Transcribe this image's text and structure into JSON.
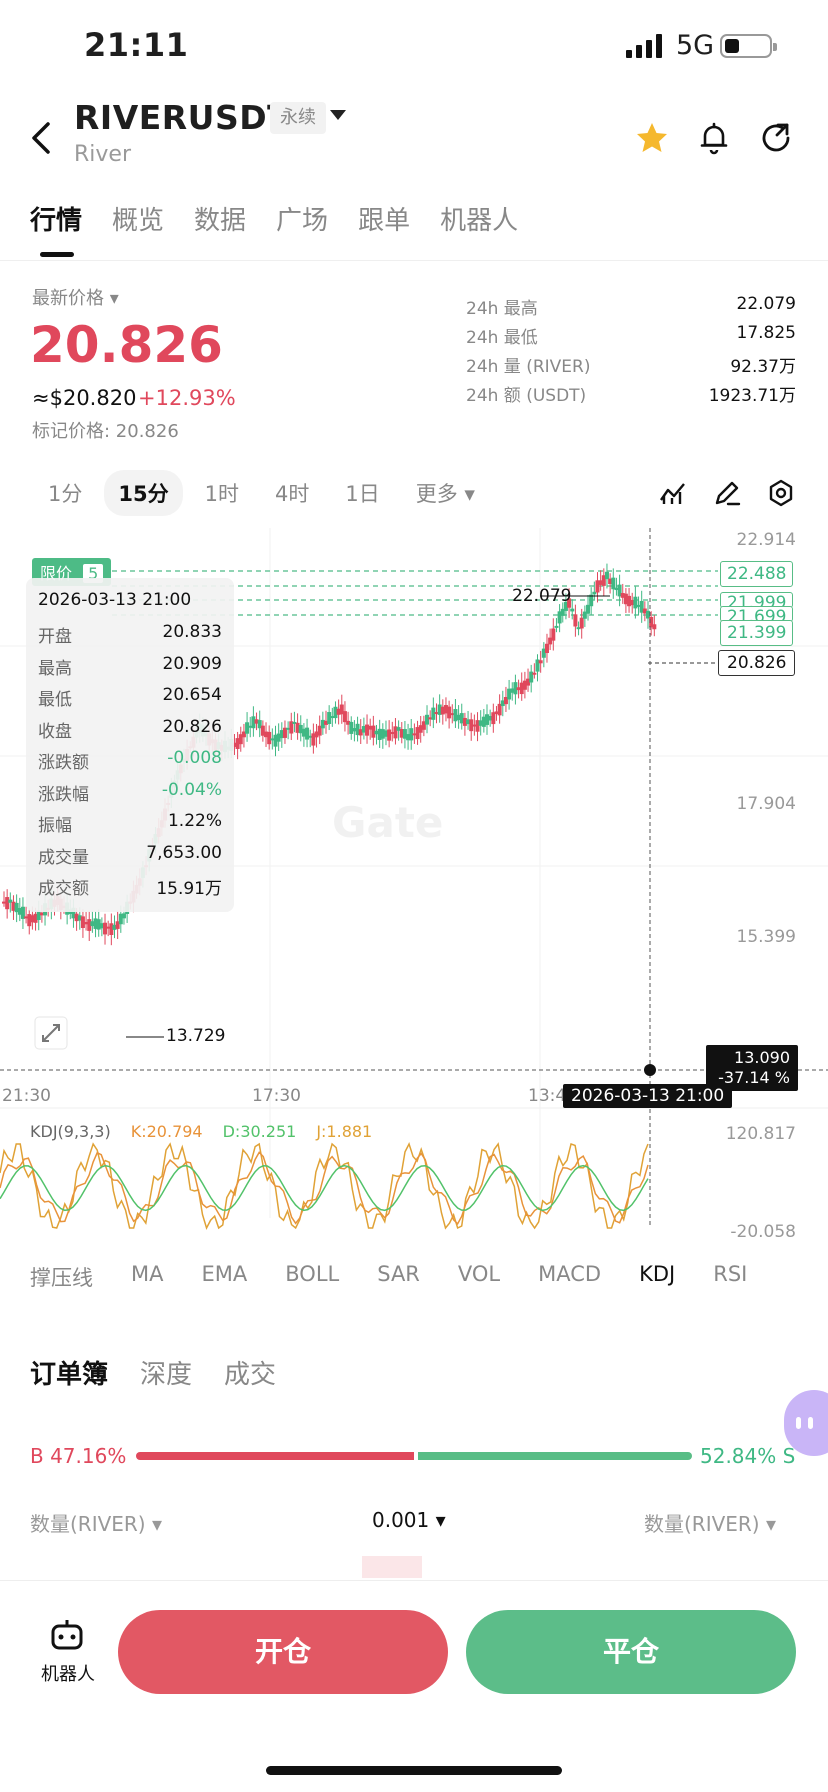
{
  "status": {
    "time": "21:11",
    "network": "5G"
  },
  "header": {
    "symbol": "RIVERUSDT",
    "tag": "永续",
    "name": "River"
  },
  "tabs": [
    "行情",
    "概览",
    "数据",
    "广场",
    "跟单",
    "机器人"
  ],
  "price": {
    "latest_label": "最新价格",
    "last": "20.826",
    "usd": "≈$20.820",
    "change": "+12.93%",
    "mark": "标记价格: 20.826"
  },
  "stats": [
    {
      "k": "24h  最高",
      "v": "22.079"
    },
    {
      "k": "24h  最低",
      "v": "17.825"
    },
    {
      "k": "24h  量 (RIVER)",
      "v": "92.37万"
    },
    {
      "k": "24h  额 (USDT)",
      "v": "1923.71万"
    }
  ],
  "intervals": [
    "1分",
    "15分",
    "1时",
    "4时",
    "1日",
    "更多"
  ],
  "tooltip": {
    "date": "2026-03-13 21:00",
    "rows": [
      {
        "k": "开盘",
        "v": "20.833",
        "c": ""
      },
      {
        "k": "最高",
        "v": "20.909",
        "c": ""
      },
      {
        "k": "最低",
        "v": "20.654",
        "c": ""
      },
      {
        "k": "收盘",
        "v": "20.826",
        "c": ""
      },
      {
        "k": "涨跌额",
        "v": "-0.008",
        "c": "green"
      },
      {
        "k": "涨跌幅",
        "v": "-0.04%",
        "c": "green"
      },
      {
        "k": "振幅",
        "v": "1.22%",
        "c": ""
      },
      {
        "k": "成交量",
        "v": "7,653.00",
        "c": ""
      },
      {
        "k": "成交额",
        "v": "15.91万",
        "c": ""
      }
    ]
  },
  "chart_data": {
    "type": "candlestick",
    "y_axis_labels": [
      "22.914",
      "17.904",
      "15.399"
    ],
    "order_lines": [
      "22.488",
      "21.999",
      "21.699",
      "21.399"
    ],
    "order_badge": "限价",
    "order_badge_count": "5",
    "current_price": "20.826",
    "high_marker": "22.079",
    "low_marker": "13.729",
    "crosshair_price": "13.090",
    "crosshair_pct": "-37.14 %",
    "crosshair_date": "2026-03-13 21:00",
    "x_labels": [
      "21:30",
      "17:30",
      "13:4"
    ],
    "watermark": "Gate",
    "close_series": [
      14.35,
      14.1,
      13.95,
      14.0,
      14.2,
      14.4,
      14.15,
      14.0,
      13.85,
      13.8,
      13.75,
      13.73,
      14.0,
      14.5,
      15.0,
      15.6,
      16.2,
      16.9,
      17.5,
      18.0,
      18.4,
      18.2,
      18.0,
      17.95,
      18.1,
      18.4,
      18.6,
      18.3,
      18.1,
      18.35,
      18.55,
      18.3,
      18.2,
      18.5,
      18.7,
      18.9,
      18.4,
      18.35,
      18.45,
      18.25,
      18.3,
      18.4,
      18.2,
      18.35,
      18.6,
      18.8,
      18.9,
      18.7,
      18.6,
      18.5,
      18.55,
      18.7,
      19.0,
      19.3,
      19.4,
      19.6,
      20.0,
      20.5,
      21.0,
      21.4,
      20.8,
      21.2,
      21.8,
      22.0,
      21.7,
      21.5,
      21.35,
      21.2,
      20.83
    ],
    "kdj": {
      "legend": "KDJ(9,3,3)",
      "K": "K:20.794",
      "D": "D:30.251",
      "J": "J:1.881",
      "max": "120.817",
      "min": "-20.058"
    }
  },
  "indicators": [
    "撑压线",
    "MA",
    "EMA",
    "BOLL",
    "SAR",
    "VOL",
    "MACD",
    "KDJ",
    "RSI"
  ],
  "orderbook": {
    "tabs": [
      "订单簿",
      "深度",
      "成交"
    ],
    "buy": "B 47.16%",
    "sell": "52.84% S",
    "buy_ratio": 0.4716,
    "qty_left": "数量(RIVER)",
    "precision": "0.001",
    "qty_right": "数量(RIVER)"
  },
  "bottom": {
    "robot": "机器人",
    "open": "开仓",
    "close": "平仓"
  },
  "colors": {
    "up": "#e0485c",
    "down": "#3fb884",
    "accent": "#f5b82e"
  }
}
